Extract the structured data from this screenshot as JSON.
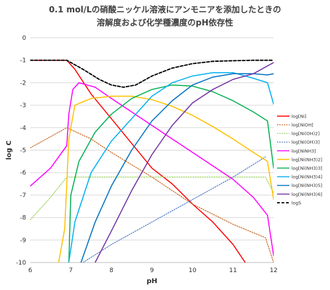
{
  "chart_data": {
    "type": "line",
    "title_lines": [
      "0.1 mol/Lの硝酸ニッケル溶液にアンモニアを添加したときの",
      "溶解度および化学種濃度のpH依存性"
    ],
    "xlabel": "pH",
    "ylabel": "log C",
    "xlim": [
      6,
      12
    ],
    "ylim": [
      -10,
      0
    ],
    "xticks": [
      6,
      7,
      8,
      9,
      10,
      11,
      12
    ],
    "yticks": [
      0,
      -1,
      -2,
      -3,
      -4,
      -5,
      -6,
      -7,
      -8,
      -9,
      -10
    ],
    "grid": "horizontal",
    "legend_position": "right",
    "series": [
      {
        "name": "log[Ni]",
        "color": "#ff0000",
        "dash": "solid",
        "points": [
          [
            6,
            -1
          ],
          [
            6.9,
            -1
          ],
          [
            7.1,
            -1.4
          ],
          [
            7.5,
            -2.5
          ],
          [
            8,
            -3.6
          ],
          [
            8.5,
            -4.7
          ],
          [
            9,
            -5.8
          ],
          [
            9.5,
            -6.5
          ],
          [
            10,
            -7.4
          ],
          [
            10.5,
            -8.2
          ],
          [
            11,
            -9.2
          ],
          [
            11.3,
            -10
          ]
        ]
      },
      {
        "name": "log[NiOH]",
        "color": "#c55a11",
        "dash": "dotted",
        "points": [
          [
            6,
            -4.9
          ],
          [
            6.5,
            -4.4
          ],
          [
            6.9,
            -4.0
          ],
          [
            7.5,
            -4.5
          ],
          [
            8,
            -5.1
          ],
          [
            9,
            -6.2
          ],
          [
            10,
            -7.4
          ],
          [
            11,
            -8.3
          ],
          [
            11.8,
            -8.9
          ],
          [
            12,
            -10.0
          ]
        ]
      },
      {
        "name": "log[Ni(OH)2]",
        "color": "#92d050",
        "dash": "dotted",
        "points": [
          [
            6,
            -8.1
          ],
          [
            6.5,
            -7.1
          ],
          [
            6.9,
            -6.2
          ],
          [
            8,
            -6.2
          ],
          [
            9,
            -6.2
          ],
          [
            10,
            -6.2
          ],
          [
            11,
            -6.2
          ],
          [
            11.8,
            -6.2
          ],
          [
            12,
            -6.9
          ]
        ]
      },
      {
        "name": "log[Ni(OH)3]",
        "color": "#4472c4",
        "dash": "dotted",
        "points": [
          [
            7.3,
            -10
          ],
          [
            8,
            -9.2
          ],
          [
            9,
            -8.2
          ],
          [
            10,
            -7.2
          ],
          [
            11,
            -6.2
          ],
          [
            11.8,
            -5.3
          ]
        ]
      },
      {
        "name": "log[NiNH3]",
        "color": "#ff00ff",
        "dash": "solid",
        "points": [
          [
            6,
            -6.6
          ],
          [
            6.5,
            -5.8
          ],
          [
            6.9,
            -4.8
          ],
          [
            6.95,
            -3.4
          ],
          [
            7.05,
            -2.3
          ],
          [
            7.2,
            -2.0
          ],
          [
            7.6,
            -2.2
          ],
          [
            8,
            -2.7
          ],
          [
            8.5,
            -3.3
          ],
          [
            9,
            -3.9
          ],
          [
            9.5,
            -4.5
          ],
          [
            10,
            -5.1
          ],
          [
            10.5,
            -5.7
          ],
          [
            11,
            -6.3
          ],
          [
            11.5,
            -7.1
          ],
          [
            11.85,
            -7.9
          ],
          [
            12,
            -9.7
          ]
        ]
      },
      {
        "name": "log[Ni(NH3)2]",
        "color": "#ffc000",
        "dash": "solid",
        "points": [
          [
            6.7,
            -10
          ],
          [
            6.85,
            -8.5
          ],
          [
            6.95,
            -4.5
          ],
          [
            7.1,
            -3.0
          ],
          [
            7.5,
            -2.7
          ],
          [
            8,
            -2.6
          ],
          [
            8.5,
            -2.6
          ],
          [
            9,
            -2.75
          ],
          [
            9.5,
            -3.05
          ],
          [
            10,
            -3.45
          ],
          [
            10.5,
            -3.95
          ],
          [
            11,
            -4.5
          ],
          [
            11.5,
            -5.1
          ],
          [
            11.85,
            -5.5
          ],
          [
            12,
            -7.2
          ]
        ]
      },
      {
        "name": "log[Ni(NH3)3]",
        "color": "#00b050",
        "dash": "solid",
        "points": [
          [
            6.95,
            -10
          ],
          [
            7.0,
            -7.0
          ],
          [
            7.2,
            -5.5
          ],
          [
            7.6,
            -4.2
          ],
          [
            8,
            -3.4
          ],
          [
            8.5,
            -2.7
          ],
          [
            9,
            -2.3
          ],
          [
            9.5,
            -2.1
          ],
          [
            10,
            -2.15
          ],
          [
            10.5,
            -2.4
          ],
          [
            11,
            -2.8
          ],
          [
            11.5,
            -3.3
          ],
          [
            11.85,
            -3.7
          ],
          [
            12,
            -5.8
          ]
        ]
      },
      {
        "name": "log[Ni(NH3)4]",
        "color": "#00b0f0",
        "dash": "solid",
        "points": [
          [
            6.95,
            -10
          ],
          [
            7.1,
            -8.2
          ],
          [
            7.5,
            -6.0
          ],
          [
            8,
            -4.6
          ],
          [
            8.5,
            -3.6
          ],
          [
            9,
            -2.6
          ],
          [
            9.5,
            -2.0
          ],
          [
            10,
            -1.7
          ],
          [
            10.5,
            -1.55
          ],
          [
            11,
            -1.55
          ],
          [
            11.5,
            -1.8
          ],
          [
            11.85,
            -2.0
          ],
          [
            12,
            -2.95
          ]
        ]
      },
      {
        "name": "log[Ni(NH3)5]",
        "color": "#0070c0",
        "dash": "solid",
        "points": [
          [
            7.25,
            -10
          ],
          [
            7.6,
            -8.2
          ],
          [
            8,
            -6.6
          ],
          [
            8.5,
            -5.0
          ],
          [
            9,
            -3.7
          ],
          [
            9.5,
            -2.8
          ],
          [
            10,
            -2.1
          ],
          [
            10.5,
            -1.75
          ],
          [
            11,
            -1.6
          ],
          [
            11.5,
            -1.6
          ],
          [
            11.85,
            -1.65
          ],
          [
            12,
            -1.6
          ]
        ]
      },
      {
        "name": "log[Ni(NH3)6]",
        "color": "#7030a0",
        "dash": "solid",
        "points": [
          [
            7.6,
            -10
          ],
          [
            8,
            -8.6
          ],
          [
            8.5,
            -6.8
          ],
          [
            9,
            -5.2
          ],
          [
            9.5,
            -3.9
          ],
          [
            10,
            -2.9
          ],
          [
            10.5,
            -2.3
          ],
          [
            11,
            -1.85
          ],
          [
            11.5,
            -1.6
          ],
          [
            12,
            -1.1
          ]
        ]
      },
      {
        "name": "logS",
        "color": "#000000",
        "dash": "dashed",
        "points": [
          [
            6,
            -1
          ],
          [
            6.9,
            -1
          ],
          [
            7.3,
            -1.4
          ],
          [
            7.7,
            -1.85
          ],
          [
            8,
            -2.1
          ],
          [
            8.3,
            -2.2
          ],
          [
            8.6,
            -2.1
          ],
          [
            9,
            -1.7
          ],
          [
            9.5,
            -1.35
          ],
          [
            10,
            -1.15
          ],
          [
            10.5,
            -1.05
          ],
          [
            11,
            -1.02
          ],
          [
            11.5,
            -1.0
          ],
          [
            12,
            -1.0
          ]
        ]
      }
    ]
  }
}
